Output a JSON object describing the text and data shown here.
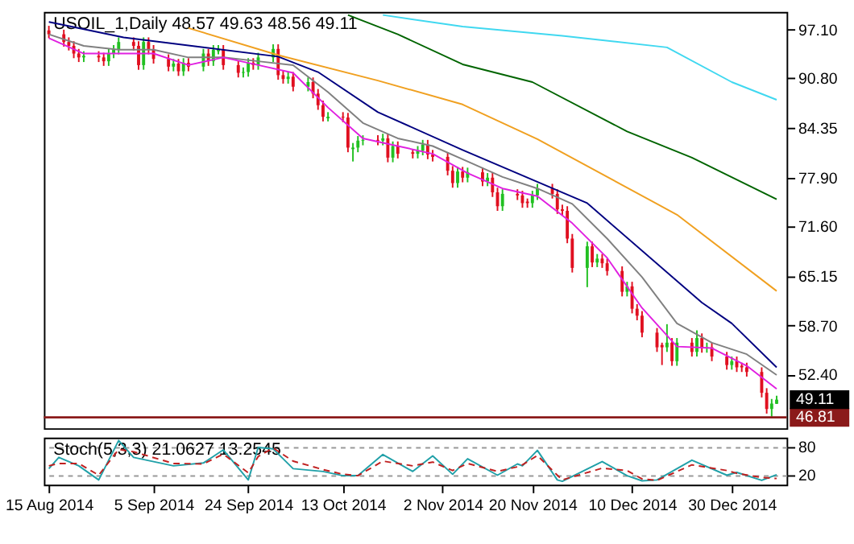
{
  "chart_data": [
    {
      "type": "candlestick",
      "title": "USOIL_1,Daily  48.57 49.63 48.56 49.11",
      "x": [
        "2014-08-15",
        "2014-08-18",
        "2014-08-19",
        "2014-08-20",
        "2014-08-21",
        "2014-08-22",
        "2014-08-25",
        "2014-08-26",
        "2014-08-27",
        "2014-08-28",
        "2014-08-29",
        "2014-09-01",
        "2014-09-02",
        "2014-09-03",
        "2014-09-04",
        "2014-09-05",
        "2014-09-08",
        "2014-09-09",
        "2014-09-10",
        "2014-09-11",
        "2014-09-12",
        "2014-09-15",
        "2014-09-16",
        "2014-09-17",
        "2014-09-18",
        "2014-09-19",
        "2014-09-22",
        "2014-09-23",
        "2014-09-24",
        "2014-09-25",
        "2014-09-26",
        "2014-09-29",
        "2014-09-30",
        "2014-10-01",
        "2014-10-02",
        "2014-10-03",
        "2014-10-06",
        "2014-10-07",
        "2014-10-08",
        "2014-10-09",
        "2014-10-10",
        "2014-10-13",
        "2014-10-14",
        "2014-10-15",
        "2014-10-16",
        "2014-10-17",
        "2014-10-20",
        "2014-10-21",
        "2014-10-22",
        "2014-10-23",
        "2014-10-24",
        "2014-10-27",
        "2014-10-28",
        "2014-10-29",
        "2014-10-30",
        "2014-10-31",
        "2014-11-03",
        "2014-11-04",
        "2014-11-05",
        "2014-11-06",
        "2014-11-07",
        "2014-11-10",
        "2014-11-11",
        "2014-11-12",
        "2014-11-13",
        "2014-11-14",
        "2014-11-17",
        "2014-11-18",
        "2014-11-19",
        "2014-11-20",
        "2014-11-21",
        "2014-11-24",
        "2014-11-25",
        "2014-11-26",
        "2014-11-27",
        "2014-11-28",
        "2014-12-01",
        "2014-12-02",
        "2014-12-03",
        "2014-12-04",
        "2014-12-05",
        "2014-12-08",
        "2014-12-09",
        "2014-12-10",
        "2014-12-11",
        "2014-12-12",
        "2014-12-15",
        "2014-12-16",
        "2014-12-17",
        "2014-12-18",
        "2014-12-19",
        "2014-12-22",
        "2014-12-23",
        "2014-12-24",
        "2014-12-25",
        "2014-12-26",
        "2014-12-29",
        "2014-12-30",
        "2014-12-31",
        "2015-01-01",
        "2015-01-02",
        "2015-01-05",
        "2015-01-06",
        "2015-01-07",
        "2015-01-08"
      ],
      "ohlc": [
        [
          97.0,
          97.6,
          96.0,
          96.5
        ],
        [
          96.5,
          97.1,
          94.9,
          95.5
        ],
        [
          95.5,
          96.1,
          94.4,
          95.0
        ],
        [
          95.0,
          95.6,
          93.4,
          94.0
        ],
        [
          94.0,
          94.6,
          92.9,
          93.5
        ],
        [
          93.5,
          94.3,
          92.9,
          93.7
        ],
        [
          93.7,
          94.3,
          92.9,
          93.5
        ],
        [
          93.5,
          94.1,
          92.4,
          93.0
        ],
        [
          93.0,
          94.6,
          92.4,
          94.0
        ],
        [
          94.0,
          95.1,
          93.4,
          94.5
        ],
        [
          94.5,
          96.1,
          93.9,
          95.5
        ],
        [
          95.5,
          96.1,
          94.4,
          95.0
        ],
        [
          95.0,
          95.6,
          91.9,
          92.5
        ],
        [
          92.5,
          96.1,
          91.9,
          95.5
        ],
        [
          95.5,
          96.1,
          93.9,
          94.5
        ],
        [
          94.5,
          95.1,
          92.7,
          93.3
        ],
        [
          93.3,
          93.9,
          91.7,
          92.3
        ],
        [
          92.3,
          93.3,
          91.7,
          92.7
        ],
        [
          92.7,
          93.3,
          91.1,
          91.7
        ],
        [
          91.7,
          93.4,
          91.1,
          92.8
        ],
        [
          92.8,
          93.4,
          91.7,
          92.3
        ],
        [
          92.3,
          94.6,
          91.7,
          94.0
        ],
        [
          94.0,
          94.6,
          92.4,
          93.0
        ],
        [
          93.0,
          95.1,
          92.4,
          94.5
        ],
        [
          94.3,
          95.1,
          93.9,
          94.5
        ],
        [
          94.5,
          95.1,
          91.9,
          92.5
        ],
        [
          92.5,
          93.1,
          90.9,
          91.5
        ],
        [
          91.5,
          92.2,
          90.9,
          91.6
        ],
        [
          91.6,
          93.4,
          91.0,
          92.8
        ],
        [
          92.8,
          93.4,
          91.9,
          92.5
        ],
        [
          92.5,
          94.1,
          91.9,
          93.5
        ],
        [
          93.5,
          95.2,
          92.9,
          94.6
        ],
        [
          94.6,
          95.2,
          90.6,
          91.2
        ],
        [
          91.2,
          91.8,
          90.1,
          90.7
        ],
        [
          90.7,
          91.6,
          90.1,
          91.0
        ],
        [
          91.0,
          91.6,
          89.1,
          89.7
        ],
        [
          89.7,
          90.9,
          89.1,
          90.3
        ],
        [
          90.3,
          90.9,
          88.2,
          88.8
        ],
        [
          88.8,
          89.4,
          86.7,
          87.3
        ],
        [
          87.3,
          87.9,
          85.2,
          85.8
        ],
        [
          85.6,
          86.4,
          85.2,
          85.8
        ],
        [
          85.8,
          86.4,
          85.1,
          85.7
        ],
        [
          85.7,
          86.3,
          81.2,
          81.8
        ],
        [
          81.6,
          82.4,
          80.0,
          81.8
        ],
        [
          81.8,
          83.3,
          81.2,
          82.7
        ],
        [
          82.7,
          83.4,
          82.1,
          82.8
        ],
        [
          82.8,
          83.4,
          82.1,
          82.7
        ],
        [
          82.7,
          83.6,
          82.1,
          83.0
        ],
        [
          83.0,
          83.6,
          79.9,
          80.5
        ],
        [
          80.5,
          82.6,
          79.9,
          82.0
        ],
        [
          82.0,
          82.6,
          80.4,
          81.0
        ],
        [
          81.2,
          81.6,
          80.4,
          81.0
        ],
        [
          81.0,
          82.0,
          80.4,
          81.4
        ],
        [
          81.4,
          82.8,
          80.8,
          82.2
        ],
        [
          82.2,
          82.8,
          80.3,
          80.9
        ],
        [
          80.9,
          81.5,
          80.0,
          80.6
        ],
        [
          80.6,
          81.2,
          78.2,
          78.8
        ],
        [
          78.8,
          79.4,
          76.6,
          77.2
        ],
        [
          77.2,
          79.3,
          76.6,
          78.7
        ],
        [
          78.7,
          79.3,
          77.3,
          77.9
        ],
        [
          77.9,
          79.2,
          77.3,
          78.6
        ],
        [
          78.6,
          79.2,
          76.8,
          77.4
        ],
        [
          77.4,
          78.5,
          76.8,
          77.9
        ],
        [
          77.9,
          78.5,
          75.4,
          76.0
        ],
        [
          76.0,
          76.6,
          73.6,
          74.2
        ],
        [
          74.2,
          76.4,
          73.6,
          75.8
        ],
        [
          75.8,
          76.4,
          75.0,
          75.6
        ],
        [
          75.6,
          76.2,
          74.0,
          74.6
        ],
        [
          74.8,
          75.2,
          74.0,
          74.6
        ],
        [
          74.6,
          76.2,
          74.0,
          75.6
        ],
        [
          75.6,
          77.1,
          75.0,
          76.5
        ],
        [
          76.5,
          77.1,
          75.2,
          75.8
        ],
        [
          75.8,
          76.4,
          73.2,
          73.8
        ],
        [
          73.8,
          74.4,
          73.0,
          73.6
        ],
        [
          73.6,
          74.2,
          69.4,
          70.0
        ],
        [
          70.0,
          70.6,
          65.6,
          66.2
        ],
        [
          66.2,
          69.6,
          63.7,
          69.0
        ],
        [
          69.0,
          69.6,
          66.3,
          66.9
        ],
        [
          66.9,
          68.0,
          66.3,
          67.4
        ],
        [
          67.4,
          68.0,
          66.2,
          66.8
        ],
        [
          66.8,
          67.4,
          65.2,
          65.8
        ],
        [
          65.8,
          66.4,
          62.5,
          63.1
        ],
        [
          63.1,
          64.4,
          62.5,
          63.8
        ],
        [
          63.8,
          64.4,
          60.3,
          60.9
        ],
        [
          60.9,
          61.5,
          59.4,
          60.0
        ],
        [
          60.0,
          60.6,
          57.2,
          57.8
        ],
        [
          57.8,
          58.4,
          55.3,
          55.9
        ],
        [
          56.2,
          56.5,
          53.6,
          55.9
        ],
        [
          55.9,
          58.9,
          55.3,
          56.5
        ],
        [
          56.5,
          57.1,
          53.5,
          54.1
        ],
        [
          54.1,
          57.1,
          53.5,
          56.5
        ],
        [
          56.5,
          57.1,
          54.7,
          55.3
        ],
        [
          55.3,
          58.1,
          54.7,
          57.1
        ],
        [
          57.1,
          57.7,
          55.2,
          55.8
        ],
        [
          55.8,
          56.5,
          55.2,
          55.9
        ],
        [
          55.9,
          56.5,
          54.1,
          54.7
        ],
        [
          54.7,
          55.3,
          53.0,
          53.6
        ],
        [
          53.6,
          54.7,
          53.0,
          54.1
        ],
        [
          54.1,
          54.7,
          52.7,
          53.3
        ],
        [
          53.5,
          53.9,
          52.7,
          53.3
        ],
        [
          53.3,
          53.9,
          52.1,
          52.7
        ],
        [
          52.7,
          53.3,
          49.4,
          50.0
        ],
        [
          50.0,
          50.6,
          47.3,
          47.9
        ],
        [
          47.9,
          49.2,
          46.9,
          48.6
        ],
        [
          48.57,
          49.63,
          48.56,
          49.11
        ]
      ],
      "series": [
        {
          "type": "line",
          "color": "#40d8f0",
          "x": [
            "2014-10-21",
            "2014-11-06",
            "2014-11-26",
            "2014-12-17",
            "2014-12-30",
            "2015-01-08"
          ],
          "values": [
            99.0,
            97.5,
            96.3,
            94.8,
            90.3,
            88.0
          ]
        },
        {
          "type": "line",
          "color": "#006400",
          "x": [
            "2014-10-14",
            "2014-10-24",
            "2014-11-06",
            "2014-11-20",
            "2014-12-09",
            "2014-12-22",
            "2015-01-08"
          ],
          "values": [
            99.0,
            96.5,
            92.6,
            90.3,
            83.9,
            80.5,
            75.1
          ]
        },
        {
          "type": "line",
          "color": "#f0a020",
          "x": [
            "2014-09-12",
            "2014-09-30",
            "2014-10-20",
            "2014-11-06",
            "2014-11-21",
            "2014-12-19",
            "2015-01-08"
          ],
          "values": [
            97.3,
            93.8,
            90.5,
            87.4,
            82.9,
            73.1,
            63.2
          ]
        },
        {
          "type": "line",
          "color": "#000080",
          "x": [
            "2014-08-15",
            "2014-08-30",
            "2014-09-30",
            "2014-10-08",
            "2014-10-20",
            "2014-11-06",
            "2014-12-01",
            "2014-12-24",
            "2014-12-30",
            "2015-01-08"
          ],
          "values": [
            98.1,
            96.1,
            93.6,
            91.6,
            86.4,
            81.5,
            74.6,
            61.7,
            59.0,
            53.3
          ]
        },
        {
          "type": "line",
          "color": "#808080",
          "x": [
            "2014-08-15",
            "2014-08-22",
            "2014-08-29",
            "2014-09-05",
            "2014-09-12",
            "2014-09-19",
            "2014-09-26",
            "2014-10-03",
            "2014-10-10",
            "2014-10-17",
            "2014-10-24",
            "2014-10-31",
            "2014-11-07",
            "2014-11-14",
            "2014-11-21",
            "2014-11-28",
            "2014-12-05",
            "2014-12-12",
            "2014-12-19",
            "2014-12-26",
            "2015-01-02",
            "2015-01-08"
          ],
          "values": [
            96.5,
            95,
            94.5,
            94.5,
            93.5,
            93.5,
            93,
            92.5,
            89,
            85,
            83,
            82,
            80,
            78,
            76.5,
            74.5,
            70,
            65,
            59,
            56.5,
            55,
            52.3
          ]
        },
        {
          "type": "line",
          "color": "#e020e0",
          "x": [
            "2014-08-15",
            "2014-08-22",
            "2014-08-29",
            "2014-09-05",
            "2014-09-12",
            "2014-09-19",
            "2014-09-26",
            "2014-10-03",
            "2014-10-10",
            "2014-10-17",
            "2014-10-24",
            "2014-10-31",
            "2014-11-07",
            "2014-11-14",
            "2014-11-21",
            "2014-11-28",
            "2014-12-05",
            "2014-12-12",
            "2014-12-19",
            "2014-12-26",
            "2015-01-02",
            "2015-01-08"
          ],
          "values": [
            96,
            94,
            94,
            94,
            92.5,
            93.5,
            92.5,
            91.5,
            87,
            83,
            82,
            81,
            78.5,
            76.5,
            75.5,
            72,
            67.5,
            61,
            56,
            55.8,
            53.5,
            50.5
          ]
        }
      ],
      "xlim": [
        "2014-08-14",
        "2015-01-10"
      ],
      "ylim": [
        45.4,
        99.4
      ],
      "yticks": [
        {
          "value": 97.1,
          "label": "97.10"
        },
        {
          "value": 90.8,
          "label": "90.80"
        },
        84.35,
        {
          "value": 77.9,
          "label": "77.90"
        },
        {
          "value": 71.6,
          "label": "71.60"
        },
        65.15,
        {
          "value": 58.7,
          "label": "58.70"
        },
        {
          "value": 52.4,
          "label": "52.40"
        }
      ],
      "tick_labels": "y",
      "ref_lines": [
        {
          "axis": "y",
          "value": 46.81,
          "label": "46.81",
          "color": "#8b1a1a"
        }
      ],
      "annotations": [
        "49.11"
      ],
      "grid": false
    },
    {
      "type": "line",
      "title": "Stoch(5,3,3) 21.0627 13.2545",
      "series": [
        {
          "color": "#20a0a8",
          "line_style": "solid",
          "x": [
            "2014-08-15",
            "2014-08-17",
            "2014-08-21",
            "2014-08-25",
            "2014-08-29",
            "2014-09-01",
            "2014-09-09",
            "2014-09-15",
            "2014-09-19",
            "2014-09-24",
            "2014-09-26",
            "2014-09-29",
            "2014-10-03",
            "2014-10-09",
            "2014-10-13",
            "2014-10-16",
            "2014-10-21",
            "2014-10-27",
            "2014-10-31",
            "2014-11-04",
            "2014-11-07",
            "2014-11-13",
            "2014-11-17",
            "2014-11-18",
            "2014-11-21",
            "2014-11-25",
            "2014-11-26",
            "2014-12-04",
            "2014-12-09",
            "2014-12-12",
            "2014-12-15",
            "2014-12-22",
            "2014-12-29",
            "2014-12-31",
            "2015-01-05",
            "2015-01-08"
          ],
          "values": [
            34,
            58,
            40,
            10,
            94,
            58,
            40,
            46,
            74,
            10,
            79,
            76,
            34,
            28,
            19,
            19,
            64,
            28,
            61,
            22,
            55,
            20,
            44,
            40,
            73,
            10,
            7,
            49,
            19,
            8,
            10,
            52,
            20,
            26,
            9,
            21
          ]
        },
        {
          "color": "#c02020",
          "line_style": "dashed",
          "x": [
            "2014-08-15",
            "2014-08-17",
            "2014-08-21",
            "2014-08-25",
            "2014-08-29",
            "2014-09-01",
            "2014-09-09",
            "2014-09-15",
            "2014-09-19",
            "2014-09-24",
            "2014-09-26",
            "2014-09-29",
            "2014-10-03",
            "2014-10-09",
            "2014-10-13",
            "2014-10-16",
            "2014-10-21",
            "2014-10-27",
            "2014-10-31",
            "2014-11-04",
            "2014-11-07",
            "2014-11-13",
            "2014-11-17",
            "2014-11-18",
            "2014-11-21",
            "2014-11-25",
            "2014-11-26",
            "2014-12-04",
            "2014-12-09",
            "2014-12-12",
            "2014-12-15",
            "2014-12-22",
            "2014-12-29",
            "2014-12-31",
            "2015-01-05",
            "2015-01-08"
          ],
          "values": [
            40,
            45,
            45,
            20,
            75,
            70,
            45,
            44,
            65,
            25,
            60,
            78,
            50,
            32,
            22,
            19,
            50,
            40,
            48,
            30,
            45,
            28,
            38,
            42,
            62,
            20,
            10,
            35,
            30,
            12,
            9,
            42,
            30,
            24,
            15,
            13
          ]
        }
      ],
      "xlim": [
        "2014-08-14",
        "2015-01-10"
      ],
      "xticks": [
        {
          "value": "2014-08-15",
          "label": "15 Aug 2014"
        },
        {
          "value": "2014-09-05",
          "label": "5 Sep 2014"
        },
        {
          "value": "2014-09-24",
          "label": "24 Sep 2014"
        },
        {
          "value": "2014-10-13",
          "label": "13 Oct 2014"
        },
        {
          "value": "2014-11-02",
          "label": "2 Nov 2014"
        },
        {
          "value": "2014-11-20",
          "label": "20 Nov 2014"
        },
        {
          "value": "2014-12-10",
          "label": "10 Dec 2014"
        },
        {
          "value": "2014-12-30",
          "label": "30 Dec 2014"
        }
      ],
      "ylim": [
        0,
        100
      ],
      "yticks": [
        20,
        80
      ],
      "grid": "y"
    }
  ]
}
